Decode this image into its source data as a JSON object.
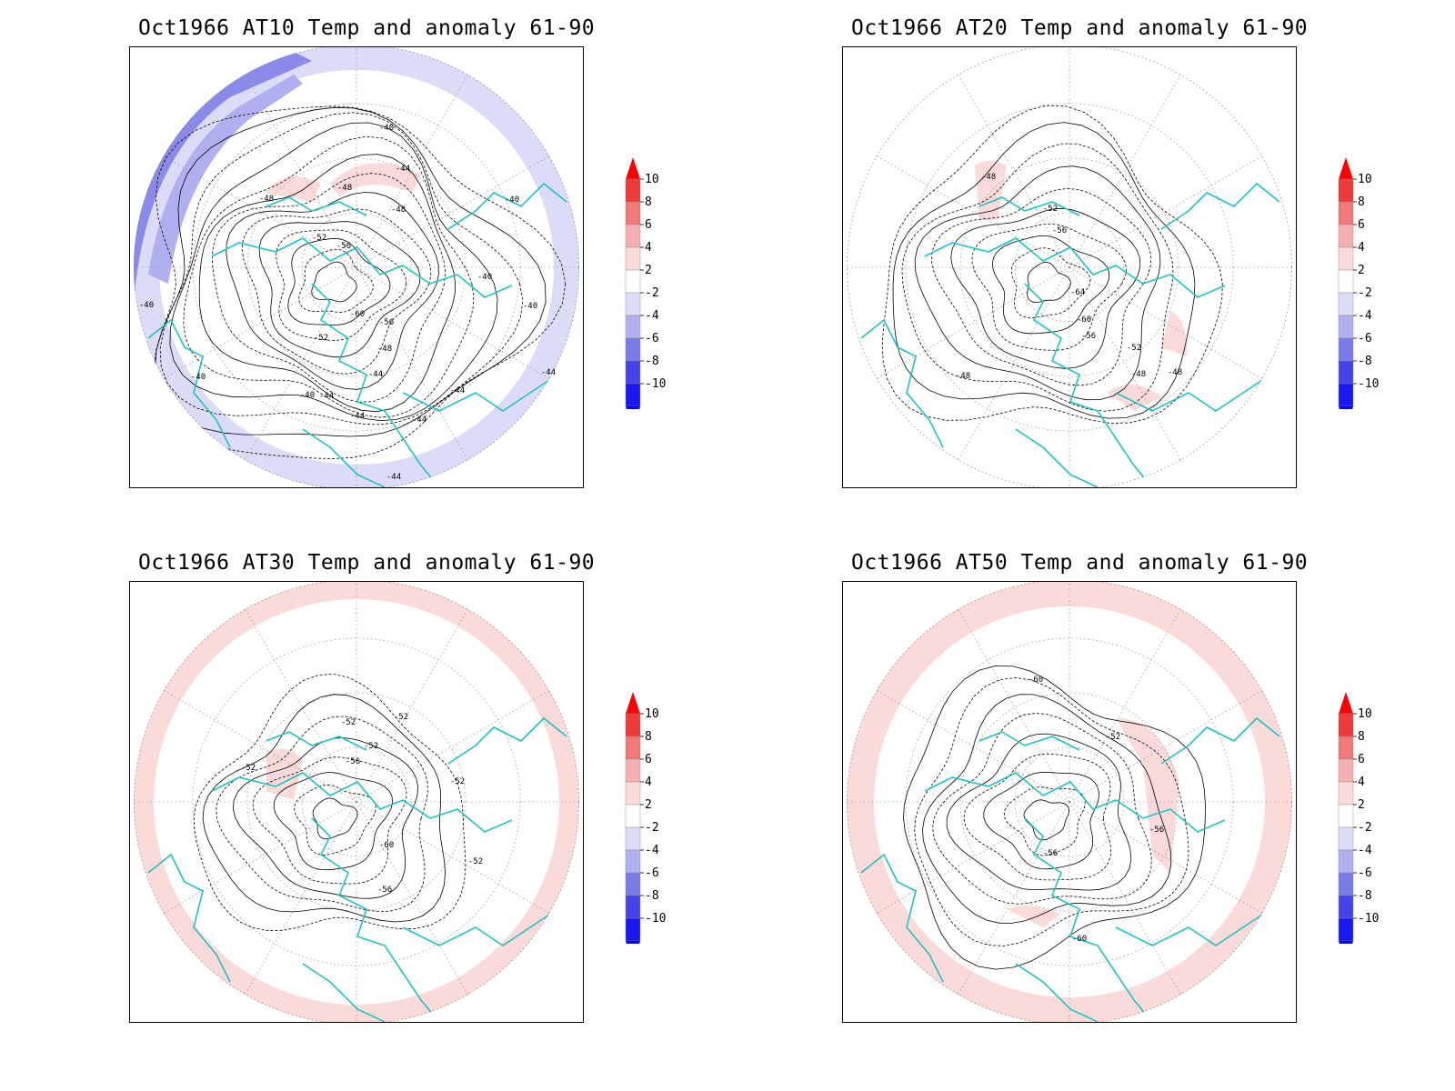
{
  "panels": [
    {
      "title": "Oct1966 AT10 Temp and anomaly 61-90",
      "contour_labels": [
        "-40",
        "-44",
        "-48",
        "-48",
        "-48",
        "-52",
        "-56",
        "-60",
        "-56",
        "-52",
        "-48",
        "-44",
        "-44",
        "-40",
        "-40",
        "-40",
        "-40",
        "-44",
        "-44",
        "-44",
        "-40",
        "-40",
        "-44",
        "-44"
      ],
      "anomaly": "cold-rim"
    },
    {
      "title": "Oct1966 AT20 Temp and anomaly 61-90",
      "contour_labels": [
        "-48",
        "-52",
        "-56",
        "-64",
        "-60",
        "-56",
        "-52",
        "-48",
        "-48",
        "-48"
      ],
      "anomaly": "weak"
    },
    {
      "title": "Oct1966 AT30 Temp and anomaly 61-90",
      "contour_labels": [
        "-52",
        "-52",
        "-52",
        "-56",
        "-52",
        "-52",
        "-60",
        "-56",
        "-52"
      ],
      "anomaly": "warm-rim"
    },
    {
      "title": "Oct1966 AT50 Temp and anomaly 61-90",
      "contour_labels": [
        "-60",
        "-52",
        "-56",
        "-56",
        "-60"
      ],
      "anomaly": "warm-ring"
    }
  ],
  "colorbar": {
    "labels": [
      "10",
      "8",
      "6",
      "4",
      "2",
      "-2",
      "-4",
      "-6",
      "-8",
      "-10"
    ],
    "colors": [
      "#ff0000",
      "#ef3a3a",
      "#f07a7a",
      "#f4b0b0",
      "#fbdada",
      "#ffffff",
      "#dcdcf8",
      "#b0b0f0",
      "#7a7ae8",
      "#4444e8",
      "#1818f0",
      "#0000ff"
    ]
  },
  "colors": {
    "coastline": "#20c2c2",
    "contour": "#000000",
    "grid": "#999999",
    "warm_anomaly": "#fbdada",
    "cold_light": "#dcdcf8",
    "cold_mid": "#b0b0f0",
    "cold_strong": "#8a8aea"
  }
}
